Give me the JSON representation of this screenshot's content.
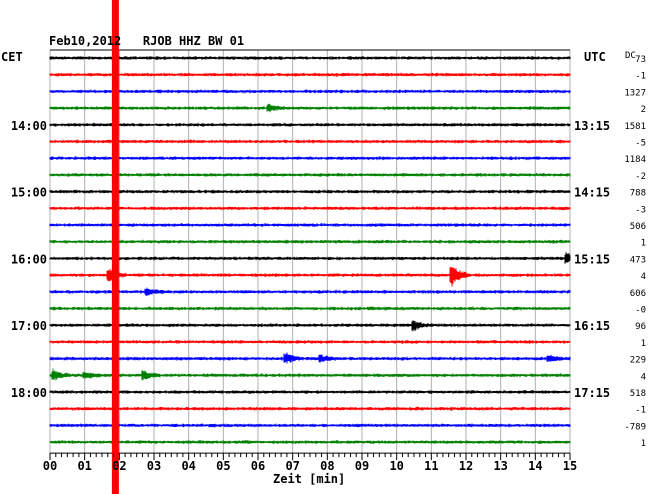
{
  "chart_data": {
    "type": "line",
    "title": "Feb10,2012   RJOB HHZ BW 01",
    "xlabel": "Zeit [min]",
    "left_axis_label": "CET",
    "right_axis_label": "UTC",
    "dc_header": "DC",
    "xlim": [
      0,
      15
    ],
    "x_ticks": [
      "00",
      "01",
      "02",
      "03",
      "04",
      "05",
      "06",
      "07",
      "08",
      "09",
      "10",
      "11",
      "12",
      "13",
      "14",
      "15"
    ],
    "left_time_labels": [
      {
        "row": 4,
        "text": "14:00"
      },
      {
        "row": 8,
        "text": "15:00"
      },
      {
        "row": 12,
        "text": "16:00"
      },
      {
        "row": 16,
        "text": "17:00"
      },
      {
        "row": 20,
        "text": "18:00"
      }
    ],
    "right_time_labels": [
      {
        "row": 4,
        "text": "13:15"
      },
      {
        "row": 8,
        "text": "14:15"
      },
      {
        "row": 12,
        "text": "15:15"
      },
      {
        "row": 16,
        "text": "16:15"
      },
      {
        "row": 20,
        "text": "17:15"
      }
    ],
    "dc_offsets": [
      "73",
      "-1",
      "1327",
      "2",
      "1581",
      "-5",
      "1184",
      "-2",
      "788",
      "-3",
      "506",
      "1",
      "473",
      "4",
      "606",
      "-0",
      "96",
      "1",
      "229",
      "4",
      "518",
      "-1",
      "-789",
      "1"
    ],
    "trace_colors": [
      "#000000",
      "#ff0000",
      "#0000ff",
      "#008000"
    ],
    "marker": {
      "minute": 1.9,
      "color": "#ff0000"
    },
    "events": [
      {
        "row": 12,
        "minute": 14.9,
        "amp": 5
      },
      {
        "row": 13,
        "minute": 1.7,
        "amp": 6
      },
      {
        "row": 13,
        "minute": 11.6,
        "amp": 10
      },
      {
        "row": 14,
        "minute": 2.8,
        "amp": 3
      },
      {
        "row": 16,
        "minute": 10.5,
        "amp": 5
      },
      {
        "row": 18,
        "minute": 6.8,
        "amp": 5
      },
      {
        "row": 18,
        "minute": 7.8,
        "amp": 3
      },
      {
        "row": 18,
        "minute": 14.4,
        "amp": 3
      },
      {
        "row": 19,
        "minute": 0.1,
        "amp": 5
      },
      {
        "row": 19,
        "minute": 2.7,
        "amp": 4
      },
      {
        "row": 19,
        "minute": 1.0,
        "amp": 3
      },
      {
        "row": 3,
        "minute": 6.3,
        "amp": 3
      }
    ]
  }
}
